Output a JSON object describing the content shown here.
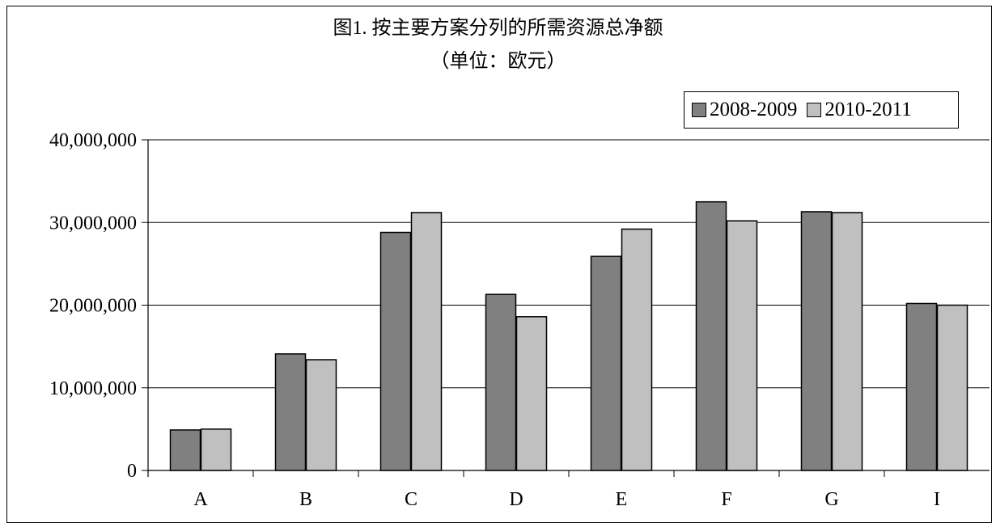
{
  "chart_data": {
    "type": "bar",
    "title": "图1. 按主要方案分列的所需资源总净额",
    "subtitle": "（单位：欧元）",
    "categories": [
      "A",
      "B",
      "C",
      "D",
      "E",
      "F",
      "G",
      "I"
    ],
    "series": [
      {
        "name": "2008-2009",
        "color": "#808080",
        "values": [
          4900000,
          14100000,
          28800000,
          21300000,
          25900000,
          32500000,
          31300000,
          20200000
        ]
      },
      {
        "name": "2010-2011",
        "color": "#c0c0c0",
        "values": [
          5000000,
          13400000,
          31200000,
          18600000,
          29200000,
          30200000,
          31200000,
          20000000
        ]
      }
    ],
    "ylim": [
      0,
      40000000
    ],
    "yticks": [
      0,
      10000000,
      20000000,
      30000000,
      40000000
    ],
    "ytick_labels": [
      "0",
      "10,000,000",
      "20,000,000",
      "30,000,000",
      "40,000,000"
    ],
    "grid": true,
    "legend_position": "top-right"
  }
}
